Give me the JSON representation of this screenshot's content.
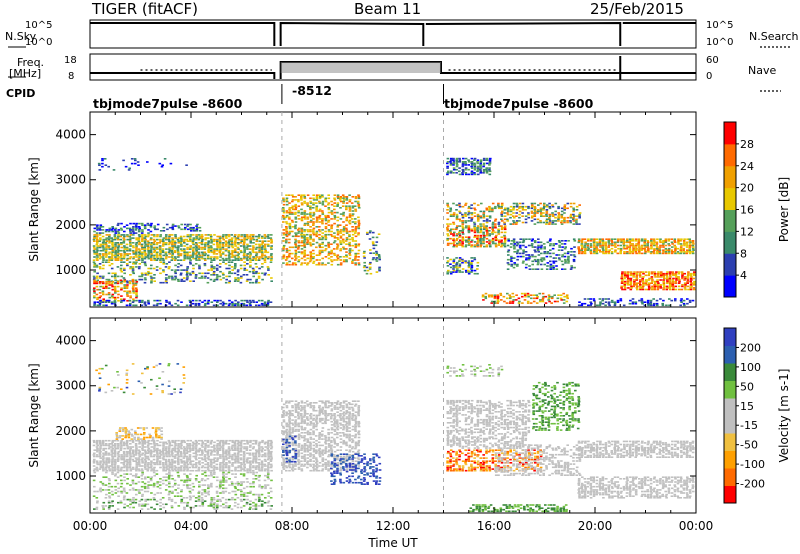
{
  "header": {
    "radar": "TIGER (fitACF)",
    "beam": "Beam 11",
    "date": "25/Feb/2015"
  },
  "nsky_panel": {
    "left_label": "N.Sky",
    "right_label": "N.Search",
    "left_ticks": [
      "10^5",
      "10^0"
    ],
    "right_ticks": [
      "10^5",
      "10^0"
    ]
  },
  "freq_panel": {
    "left_label_1": "Freq.",
    "left_label_2": "[MHz]",
    "right_label": "Nave",
    "left_ticks": [
      "18",
      "8"
    ],
    "right_ticks": [
      "60",
      "0"
    ]
  },
  "cpid": {
    "label": "CPID",
    "modes": [
      {
        "text": "tbjmode7pulse -8600",
        "start_hour": 0.0
      },
      {
        "text": "-8512",
        "start_hour": 7.6
      },
      {
        "text": "tbjmode7pulse -8600",
        "start_hour": 14.0
      }
    ]
  },
  "colors": {
    "power_scale": [
      "#0000ff",
      "#2c3fb0",
      "#3a8a6a",
      "#55a05a",
      "#e8c800",
      "#f0a000",
      "#ff6a00",
      "#ff0000"
    ],
    "velocity_scale": [
      "#ff0000",
      "#ff6a00",
      "#ffa000",
      "#f0c040",
      "#c0c0c0",
      "#c0c0c0",
      "#70c040",
      "#3a8a3a",
      "#2c5fb0",
      "#3040c0"
    ]
  },
  "chart_data": [
    {
      "type": "heatmap",
      "name": "power",
      "xlabel": "",
      "ylabel": "Slant Range [km]",
      "xlim": [
        0,
        24
      ],
      "ylim": [
        180,
        4500
      ],
      "yticks": [
        "1000",
        "2000",
        "3000",
        "4000"
      ],
      "colorbar": {
        "label": "Power [dB]",
        "ticks": [
          "4",
          "8",
          "12",
          "16",
          "20",
          "24",
          "28"
        ],
        "range": [
          0,
          32
        ]
      }
    },
    {
      "type": "heatmap",
      "name": "velocity",
      "xlabel": "Time UT",
      "ylabel": "Slant Range [km]",
      "xlim": [
        0,
        24
      ],
      "ylim": [
        180,
        4500
      ],
      "xticks": [
        "00:00",
        "04:00",
        "08:00",
        "12:00",
        "16:00",
        "20:00",
        "00:00"
      ],
      "yticks": [
        "1000",
        "2000",
        "3000",
        "4000"
      ],
      "colorbar": {
        "label": "Velocity [m s-1]",
        "ticks": [
          "200",
          "100",
          "50",
          "15",
          "-15",
          "-50",
          "-100",
          "-200"
        ],
        "range": [
          -250,
          250
        ]
      }
    }
  ]
}
